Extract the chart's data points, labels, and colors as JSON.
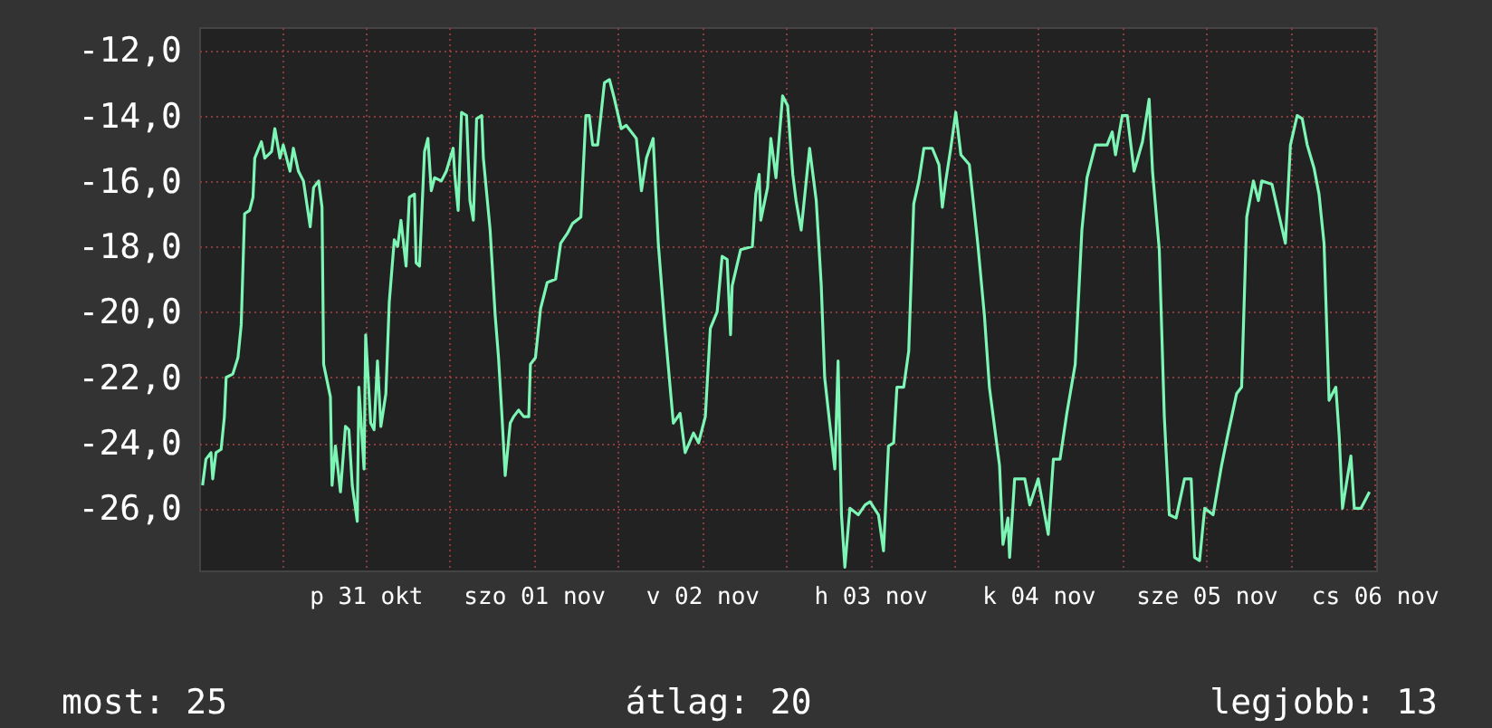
{
  "chart_data": {
    "type": "line",
    "x": [
      "--10-30T12:43",
      "--10-30T13:12",
      "--10-30T13:55",
      "--10-30T14:10",
      "--10-30T14:38",
      "--10-30T15:22",
      "--10-30T15:50",
      "--10-30T16:05",
      "--10-30T17:02",
      "--10-30T17:46",
      "--10-30T18:14",
      "--10-30T18:43",
      "--10-30T19:26",
      "--10-30T19:55",
      "--10-30T20:10",
      "--10-30T21:07",
      "--10-30T21:36",
      "--10-30T22:34",
      "--10-30T23:02",
      "--10-30T23:46",
      "--10-31T00:14",
      "--10-31T01:12",
      "--10-31T01:41",
      "--10-31T02:24",
      "--10-31T03:07",
      "--10-31T04:05",
      "--10-31T04:34",
      "--10-31T05:17",
      "--10-31T05:46",
      "--10-31T06:00",
      "--10-31T06:58",
      "--10-31T07:12",
      "--10-31T07:41",
      "--10-31T08:24",
      "--10-31T09:07",
      "--10-31T09:36",
      "--10-31T10:05",
      "--10-31T10:48",
      "--10-31T11:02",
      "--10-31T11:46",
      "--10-31T12:00",
      "--10-31T12:43",
      "--10-31T13:12",
      "--10-31T13:41",
      "--10-31T14:10",
      "--10-31T14:53",
      "--10-31T15:22",
      "--10-31T16:05",
      "--10-31T16:34",
      "--10-31T17:02",
      "--10-31T17:46",
      "--10-31T18:14",
      "--10-31T18:58",
      "--10-31T19:12",
      "--10-31T19:41",
      "--10-31T20:24",
      "--10-31T20:53",
      "--10-31T21:22",
      "--10-31T21:50",
      "--10-31T22:48",
      "--10-31T23:31",
      "--11-01T00:29",
      "--11-01T00:43",
      "--11-01T01:12",
      "--11-01T01:41",
      "--11-01T02:24",
      "--11-01T02:53",
      "--11-01T03:22",
      "--11-01T03:50",
      "--11-01T04:34",
      "--11-01T04:48",
      "--11-01T05:46",
      "--11-01T06:29",
      "--11-01T06:58",
      "--11-01T07:26",
      "--11-01T07:55",
      "--11-01T08:38",
      "--11-01T09:07",
      "--11-01T09:50",
      "--11-01T10:34",
      "--11-01T11:17",
      "--11-01T11:31",
      "--11-01T12:14",
      "--11-01T12:58",
      "--11-01T13:55",
      "--11-01T15:07",
      "--11-01T15:50",
      "--11-01T16:48",
      "--11-01T17:31",
      "--11-01T18:43",
      "--11-01T19:26",
      "--11-01T19:55",
      "--11-01T20:24",
      "--11-01T21:07",
      "--11-01T22:05",
      "--11-01T22:48",
      "--11-01T23:31",
      "--11-02T00:29",
      "--11-02T01:12",
      "--11-02T02:38",
      "--11-02T03:22",
      "--11-02T04:05",
      "--11-02T05:02",
      "--11-02T05:46",
      "--11-02T06:43",
      "--11-02T07:55",
      "--11-02T08:53",
      "--11-02T09:36",
      "--11-02T10:48",
      "--11-02T11:31",
      "--11-02T12:29",
      "--11-02T13:12",
      "--11-02T14:10",
      "--11-02T14:53",
      "--11-02T15:36",
      "--11-02T16:05",
      "--11-02T16:19",
      "--11-02T17:31",
      "--11-02T19:12",
      "--11-02T19:41",
      "--11-02T20:10",
      "--11-02T20:24",
      "--11-02T21:22",
      "--11-02T21:50",
      "--11-02T22:34",
      "--11-02T23:31",
      "--11-03T00:14",
      "--11-03T00:58",
      "--11-03T01:26",
      "--11-03T02:10",
      "--11-03T03:22",
      "--11-03T04:19",
      "--11-03T05:02",
      "--11-03T05:31",
      "--11-03T06:14",
      "--11-03T06:58",
      "--11-03T07:26",
      "--11-03T07:55",
      "--11-03T08:24",
      "--11-03T09:07",
      "--11-03T10:19",
      "--11-03T11:17",
      "--11-03T12:00",
      "--11-03T13:12",
      "--11-03T13:55",
      "--11-03T14:38",
      "--11-03T15:22",
      "--11-03T15:50",
      "--11-03T16:48",
      "--11-03T17:31",
      "--11-03T18:14",
      "--11-03T18:58",
      "--11-03T19:41",
      "--11-03T20:53",
      "--11-03T21:50",
      "--11-03T22:19",
      "--11-03T22:48",
      "--11-03T23:31",
      "--11-04T00:14",
      "--11-04T00:58",
      "--11-04T02:10",
      "--11-04T03:22",
      "--11-04T04:19",
      "--11-04T05:02",
      "--11-04T06:29",
      "--11-04T06:58",
      "--11-04T07:41",
      "--11-04T07:55",
      "--11-04T08:38",
      "--11-04T10:05",
      "--11-04T10:48",
      "--11-04T12:00",
      "--11-04T13:26",
      "--11-04T14:10",
      "--11-04T15:07",
      "--11-04T16:05",
      "--11-04T17:17",
      "--11-04T18:14",
      "--11-04T18:58",
      "--11-04T20:10",
      "--11-04T21:50",
      "--11-04T22:34",
      "--11-04T23:02",
      "--11-05T00:00",
      "--11-05T00:43",
      "--11-05T01:41",
      "--11-05T02:53",
      "--11-05T03:50",
      "--11-05T04:19",
      "--11-05T05:17",
      "--11-05T06:00",
      "--11-05T06:43",
      "--11-05T07:41",
      "--11-05T08:53",
      "--11-05T09:50",
      "--11-05T10:19",
      "--11-05T11:02",
      "--11-05T11:46",
      "--11-05T12:58",
      "--11-05T14:10",
      "--11-05T15:07",
      "--11-05T16:19",
      "--11-05T17:02",
      "--11-05T17:46",
      "--11-05T18:43",
      "--11-05T19:26",
      "--11-05T19:55",
      "--11-05T21:22",
      "--11-05T22:19",
      "--11-05T23:17",
      "--11-06T00:00",
      "--11-06T00:58",
      "--11-06T01:41",
      "--11-06T02:24",
      "--11-06T03:22",
      "--11-06T04:05",
      "--11-06T04:48",
      "--11-06T05:31",
      "--11-06T06:29",
      "--11-06T06:58",
      "--11-06T07:26",
      "--11-06T08:38",
      "--11-06T09:07",
      "--11-06T10:05",
      "--11-06T11:17"
    ],
    "series": [
      {
        "color": "#7cf5b5",
        "values": [
          -25.3,
          -24.5,
          -24.3,
          -25.1,
          -24.3,
          -24.2,
          -23.2,
          -22.0,
          -21.9,
          -21.4,
          -20.4,
          -17.0,
          -16.9,
          -16.5,
          -15.3,
          -14.8,
          -15.3,
          -15.1,
          -14.4,
          -15.3,
          -14.9,
          -15.7,
          -15.0,
          -15.7,
          -16.0,
          -17.4,
          -16.2,
          -16.0,
          -16.8,
          -21.6,
          -22.6,
          -25.3,
          -24.1,
          -25.5,
          -23.5,
          -23.6,
          -25.3,
          -26.4,
          -22.3,
          -24.8,
          -20.7,
          -23.4,
          -23.6,
          -21.5,
          -23.5,
          -22.5,
          -19.7,
          -17.8,
          -18.0,
          -17.2,
          -18.6,
          -16.5,
          -16.4,
          -18.5,
          -18.6,
          -15.1,
          -14.7,
          -16.3,
          -15.9,
          -16.0,
          -15.7,
          -15.0,
          -15.8,
          -16.9,
          -13.9,
          -14.0,
          -16.6,
          -17.2,
          -14.1,
          -14.0,
          -15.3,
          -17.5,
          -20.1,
          -21.4,
          -23.1,
          -25.0,
          -23.4,
          -23.2,
          -23.0,
          -23.2,
          -23.2,
          -21.6,
          -21.4,
          -19.9,
          -19.1,
          -19.0,
          -17.9,
          -17.6,
          -17.3,
          -17.1,
          -14.0,
          -14.0,
          -14.9,
          -14.9,
          -13.0,
          -12.9,
          -13.5,
          -14.4,
          -14.3,
          -14.7,
          -16.3,
          -15.3,
          -14.7,
          -17.9,
          -20.5,
          -23.4,
          -23.1,
          -24.3,
          -23.7,
          -24.0,
          -23.2,
          -20.5,
          -20.0,
          -18.3,
          -18.4,
          -20.7,
          -19.2,
          -18.1,
          -18.0,
          -16.4,
          -15.8,
          -17.2,
          -16.2,
          -14.7,
          -15.9,
          -13.4,
          -13.7,
          -15.8,
          -16.6,
          -17.5,
          -15.0,
          -16.6,
          -19.2,
          -22.0,
          -23.4,
          -24.8,
          -21.5,
          -26.2,
          -27.8,
          -26.0,
          -26.2,
          -25.9,
          -25.8,
          -26.2,
          -27.3,
          -24.1,
          -24.0,
          -22.3,
          -22.3,
          -21.2,
          -16.7,
          -16.0,
          -15.0,
          -15.0,
          -15.5,
          -16.8,
          -16.0,
          -15.0,
          -13.9,
          -15.2,
          -15.5,
          -17.9,
          -20.1,
          -22.3,
          -24.7,
          -27.1,
          -26.3,
          -27.5,
          -25.1,
          -25.1,
          -25.9,
          -25.1,
          -26.8,
          -24.5,
          -24.5,
          -23.1,
          -21.6,
          -17.5,
          -15.9,
          -14.9,
          -14.9,
          -14.5,
          -15.2,
          -14.0,
          -14.0,
          -15.7,
          -14.8,
          -13.5,
          -15.7,
          -18.1,
          -23.2,
          -26.2,
          -26.3,
          -25.1,
          -25.1,
          -27.5,
          -27.6,
          -26.0,
          -26.2,
          -24.7,
          -23.7,
          -22.5,
          -22.3,
          -17.1,
          -16.0,
          -16.6,
          -16.0,
          -16.1,
          -17.0,
          -17.9,
          -14.9,
          -14.0,
          -14.1,
          -14.9,
          -15.6,
          -16.4,
          -17.9,
          -22.7,
          -22.3,
          -23.8,
          -26.0,
          -24.4,
          -26.0,
          -26.0,
          -25.5
        ]
      }
    ],
    "xlim": [
      "--10-30T12:14",
      "--11-06T12:14"
    ],
    "xticks": [
      {
        "value": "--10-31T00:00",
        "label": null
      },
      {
        "value": "--10-31T12:00",
        "label": "p 31 okt"
      },
      {
        "value": "--11-01T00:00",
        "label": null
      },
      {
        "value": "--11-01T12:00",
        "label": "szo 01 nov"
      },
      {
        "value": "--11-02T00:00",
        "label": null
      },
      {
        "value": "--11-02T12:00",
        "label": "v 02 nov"
      },
      {
        "value": "--11-03T00:00",
        "label": null
      },
      {
        "value": "--11-03T12:00",
        "label": "h 03 nov"
      },
      {
        "value": "--11-04T00:00",
        "label": null
      },
      {
        "value": "--11-04T12:00",
        "label": "k 04 nov"
      },
      {
        "value": "--11-05T00:00",
        "label": null
      },
      {
        "value": "--11-05T12:00",
        "label": "sze 05 nov"
      },
      {
        "value": "--11-06T00:00",
        "label": null
      },
      {
        "value": "--11-06T12:00",
        "label": "cs 06 nov"
      }
    ],
    "ylim": [
      -27.9,
      -11.3
    ],
    "yticks": [
      {
        "value": -26,
        "label": "-26,0"
      },
      {
        "value": -24,
        "label": "-24,0"
      },
      {
        "value": -22,
        "label": "-22,0"
      },
      {
        "value": -20,
        "label": "-20,0"
      },
      {
        "value": -18,
        "label": "-18,0"
      },
      {
        "value": -16,
        "label": "-16,0"
      },
      {
        "value": -14,
        "label": "-14,0"
      },
      {
        "value": -12,
        "label": "-12,0"
      }
    ],
    "grid": true,
    "annotations": [
      "most: 25",
      "átlag: 20",
      "legjobb: 13"
    ]
  }
}
